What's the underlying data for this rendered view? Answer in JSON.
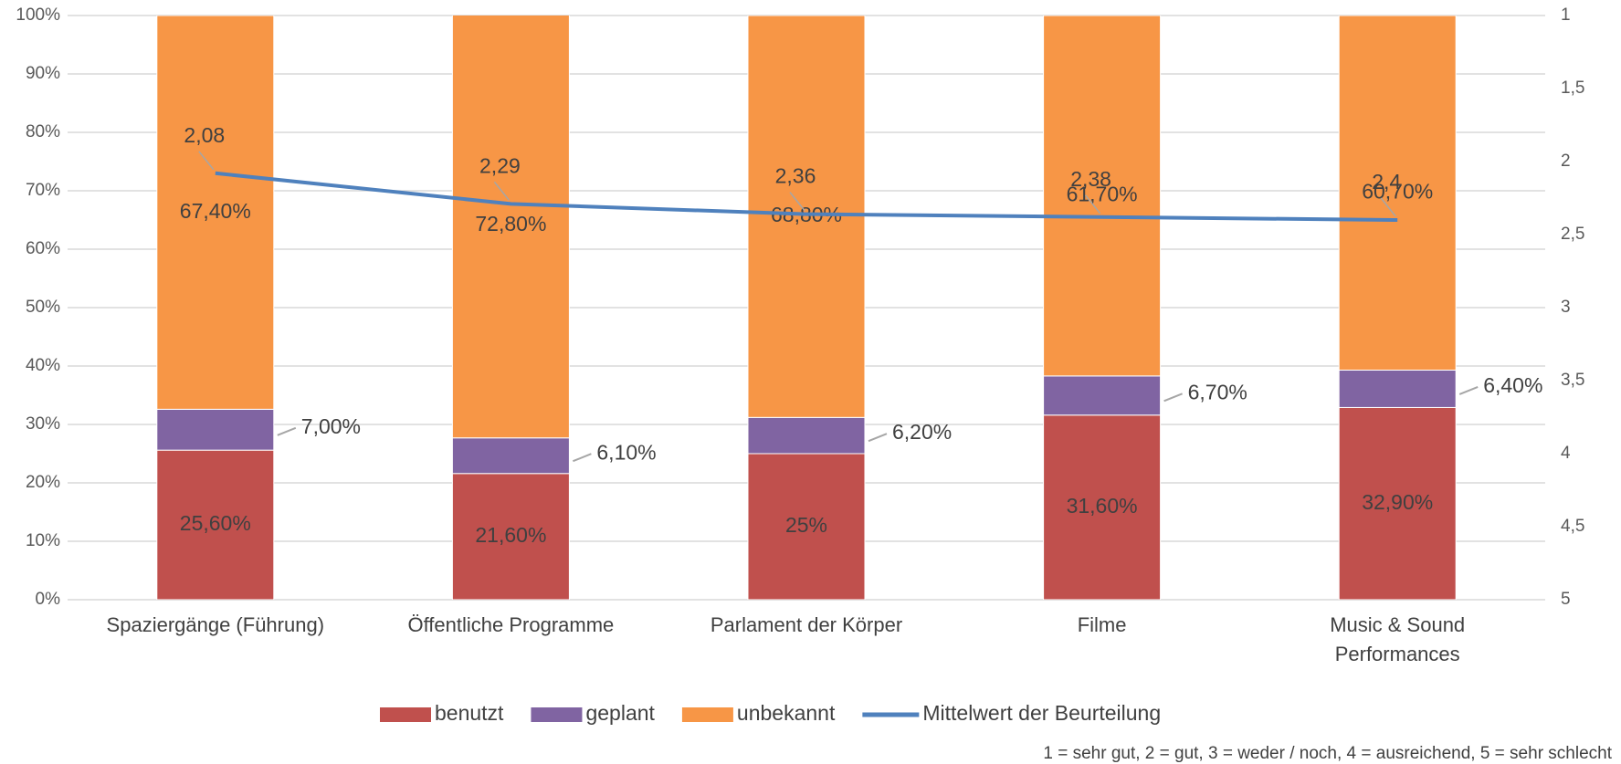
{
  "chart_data": {
    "type": "stacked-bar-line",
    "categories": [
      "Spaziergänge (Führung)",
      "Öffentliche Programme",
      "Parlament der Körper",
      "Filme",
      "Music & Sound Performances"
    ],
    "series": [
      {
        "name": "benutzt",
        "color": "#c0504d",
        "values": [
          25.6,
          21.6,
          25,
          31.6,
          32.9
        ],
        "value_labels": [
          "25,60%",
          "21,60%",
          "25%",
          "31,60%",
          "32,90%"
        ]
      },
      {
        "name": "geplant",
        "color": "#8064a2",
        "values": [
          7.0,
          6.1,
          6.2,
          6.7,
          6.4
        ],
        "value_labels": [
          "7,00%",
          "6,10%",
          "6,20%",
          "6,70%",
          "6,40%"
        ]
      },
      {
        "name": "unbekannt",
        "color": "#f79646",
        "values": [
          67.4,
          72.8,
          68.8,
          61.7,
          60.7
        ],
        "value_labels": [
          "67,40%",
          "72,80%",
          "68,80%",
          "61,70%",
          "60,70%"
        ]
      },
      {
        "name": "Mittelwert der Beurteilung",
        "color": "#4f81bd",
        "type": "line",
        "axis": "y2",
        "values": [
          2.08,
          2.29,
          2.36,
          2.38,
          2.4
        ],
        "value_labels": [
          "2,08",
          "2,29",
          "2,36",
          "2,38",
          "2,4"
        ]
      }
    ],
    "ylim": [
      0,
      100
    ],
    "yticks": [
      {
        "value": 0,
        "label": "0%"
      },
      {
        "value": 10,
        "label": "10%"
      },
      {
        "value": 20,
        "label": "20%"
      },
      {
        "value": 30,
        "label": "30%"
      },
      {
        "value": 40,
        "label": "40%"
      },
      {
        "value": 50,
        "label": "50%"
      },
      {
        "value": 60,
        "label": "60%"
      },
      {
        "value": 70,
        "label": "70%"
      },
      {
        "value": 80,
        "label": "80%"
      },
      {
        "value": 90,
        "label": "90%"
      },
      {
        "value": 100,
        "label": "100%"
      }
    ],
    "y2lim": [
      5,
      1
    ],
    "y2ticks": [
      1,
      {
        "value": 1.5,
        "label": "1,5"
      },
      2,
      {
        "value": 2.5,
        "label": "2,5"
      },
      3,
      {
        "value": 3.5,
        "label": "3,5"
      },
      4,
      {
        "value": 4.5,
        "label": "4,5"
      },
      5
    ],
    "grid": true,
    "legend": "bottom",
    "note": "1 = sehr gut, 2 = gut, 3 = weder / noch, 4 = ausreichend, 5 = sehr schlecht"
  }
}
